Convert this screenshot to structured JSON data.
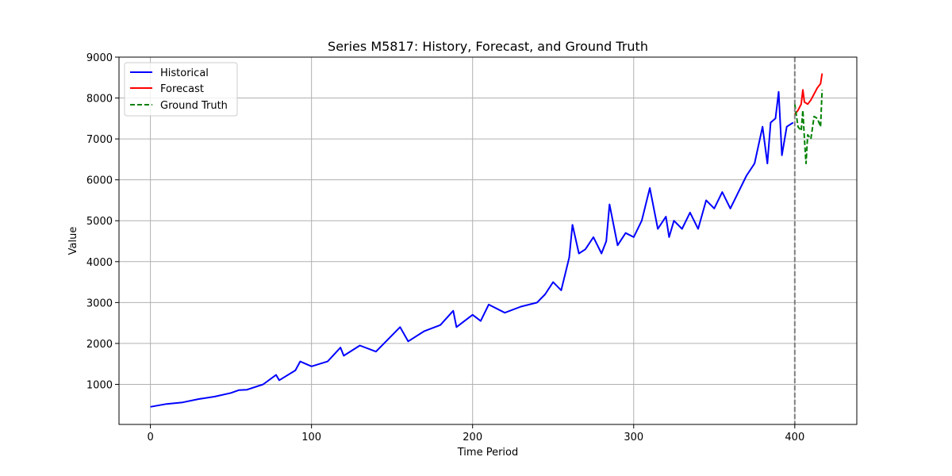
{
  "chart_data": {
    "type": "line",
    "title": "Series M5817: History, Forecast, and Ground Truth",
    "xlabel": "Time Period",
    "ylabel": "Value",
    "xlim": [
      -19.5,
      438.5
    ],
    "ylim": [
      20,
      9000
    ],
    "x_ticks": [
      0,
      100,
      200,
      300,
      400
    ],
    "y_ticks": [
      1000,
      2000,
      3000,
      4000,
      5000,
      6000,
      7000,
      8000,
      9000
    ],
    "grid": true,
    "legend_position": "top-left",
    "forecast_start": 400,
    "colors": {
      "historical": "#0000ff",
      "forecast": "#ff0000",
      "ground_truth": "#008000",
      "divider": "#808080",
      "grid": "#b0b0b0"
    },
    "series": [
      {
        "name": "Historical",
        "style": "solid",
        "points": [
          [
            0,
            450
          ],
          [
            10,
            520
          ],
          [
            20,
            560
          ],
          [
            30,
            640
          ],
          [
            40,
            700
          ],
          [
            50,
            790
          ],
          [
            55,
            860
          ],
          [
            60,
            870
          ],
          [
            70,
            1000
          ],
          [
            78,
            1230
          ],
          [
            80,
            1100
          ],
          [
            90,
            1340
          ],
          [
            93,
            1560
          ],
          [
            100,
            1440
          ],
          [
            110,
            1560
          ],
          [
            118,
            1900
          ],
          [
            120,
            1700
          ],
          [
            130,
            1950
          ],
          [
            140,
            1800
          ],
          [
            150,
            2200
          ],
          [
            155,
            2400
          ],
          [
            160,
            2050
          ],
          [
            170,
            2300
          ],
          [
            180,
            2450
          ],
          [
            188,
            2800
          ],
          [
            190,
            2400
          ],
          [
            200,
            2700
          ],
          [
            205,
            2550
          ],
          [
            210,
            2950
          ],
          [
            220,
            2750
          ],
          [
            230,
            2900
          ],
          [
            240,
            3000
          ],
          [
            245,
            3200
          ],
          [
            250,
            3500
          ],
          [
            255,
            3300
          ],
          [
            260,
            4100
          ],
          [
            262,
            4900
          ],
          [
            266,
            4200
          ],
          [
            270,
            4300
          ],
          [
            275,
            4600
          ],
          [
            280,
            4200
          ],
          [
            283,
            4500
          ],
          [
            285,
            5400
          ],
          [
            290,
            4400
          ],
          [
            295,
            4700
          ],
          [
            300,
            4600
          ],
          [
            305,
            5000
          ],
          [
            310,
            5800
          ],
          [
            315,
            4800
          ],
          [
            320,
            5100
          ],
          [
            322,
            4600
          ],
          [
            325,
            5000
          ],
          [
            330,
            4800
          ],
          [
            335,
            5200
          ],
          [
            340,
            4800
          ],
          [
            345,
            5500
          ],
          [
            350,
            5300
          ],
          [
            355,
            5700
          ],
          [
            360,
            5300
          ],
          [
            365,
            5700
          ],
          [
            370,
            6100
          ],
          [
            375,
            6400
          ],
          [
            380,
            7300
          ],
          [
            383,
            6400
          ],
          [
            385,
            7400
          ],
          [
            388,
            7500
          ],
          [
            390,
            8150
          ],
          [
            392,
            6600
          ],
          [
            395,
            7300
          ],
          [
            399,
            7400
          ]
        ]
      },
      {
        "name": "Forecast",
        "style": "solid",
        "points": [
          [
            400,
            7600
          ],
          [
            402,
            7700
          ],
          [
            404,
            7850
          ],
          [
            405,
            8200
          ],
          [
            406,
            7900
          ],
          [
            408,
            7850
          ],
          [
            410,
            7950
          ],
          [
            412,
            8100
          ],
          [
            414,
            8250
          ],
          [
            416,
            8350
          ],
          [
            417,
            8600
          ]
        ]
      },
      {
        "name": "Ground Truth",
        "style": "dashed",
        "points": [
          [
            400,
            7850
          ],
          [
            402,
            7300
          ],
          [
            404,
            7200
          ],
          [
            405,
            7700
          ],
          [
            406,
            7000
          ],
          [
            407,
            6400
          ],
          [
            408,
            7100
          ],
          [
            410,
            7000
          ],
          [
            412,
            7550
          ],
          [
            414,
            7500
          ],
          [
            415,
            7400
          ],
          [
            416,
            7300
          ],
          [
            417,
            8200
          ]
        ]
      }
    ]
  }
}
